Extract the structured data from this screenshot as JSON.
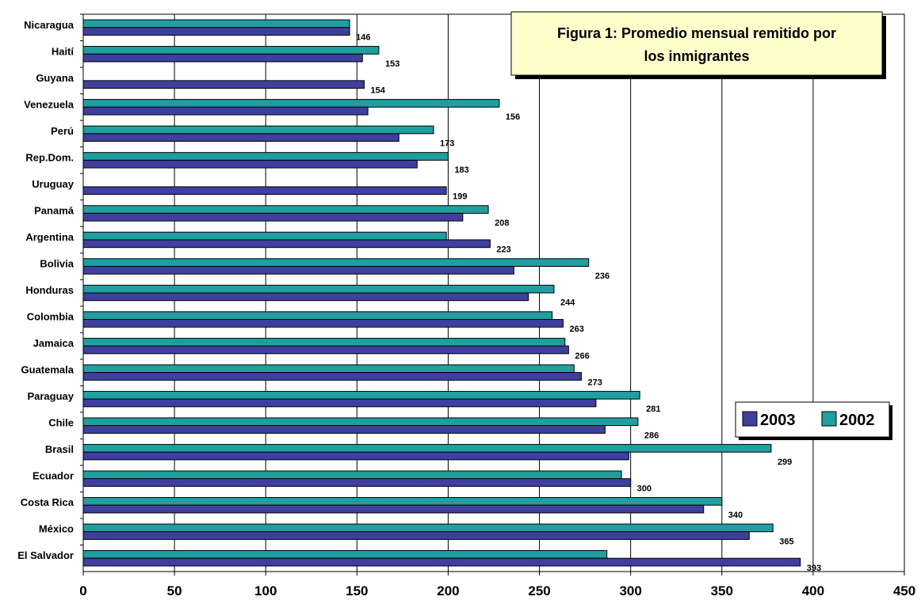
{
  "chart_data": {
    "type": "bar",
    "orientation": "horizontal",
    "title_lines": [
      "Figura 1: Promedio mensual remitido por",
      "los inmigrantes"
    ],
    "categories": [
      "Nicaragua",
      "Haití",
      "Guyana",
      "Venezuela",
      "Perú",
      "Rep.Dom.",
      "Uruguay",
      "Panamá",
      "Argentina",
      "Bolivia",
      "Honduras",
      "Colombia",
      "Jamaica",
      "Guatemala",
      "Paraguay",
      "Chile",
      "Brasil",
      "Ecuador",
      "Costa Rica",
      "México",
      "El Salvador"
    ],
    "series": [
      {
        "name": "2003",
        "color": "#3f3f9f",
        "values": [
          146,
          153,
          154,
          156,
          173,
          183,
          199,
          208,
          223,
          236,
          244,
          263,
          266,
          273,
          281,
          286,
          299,
          300,
          340,
          365,
          393
        ],
        "labels": [
          "146",
          "153",
          "154",
          "156",
          "173",
          "183",
          "199",
          "208",
          "223",
          "236",
          "244",
          "263",
          "266",
          "273",
          "281",
          "286",
          "299",
          "300",
          "340",
          "365",
          "393"
        ]
      },
      {
        "name": "2002",
        "color": "#1f9f9f",
        "values": [
          146,
          162,
          null,
          228,
          192,
          200,
          null,
          222,
          199,
          277,
          258,
          257,
          264,
          269,
          305,
          304,
          377,
          295,
          350,
          378,
          287
        ]
      }
    ],
    "xlim": [
      0,
      450
    ],
    "xticks": [
      "0",
      "50",
      "100",
      "150",
      "200",
      "250",
      "300",
      "350",
      "400",
      "450"
    ],
    "grid": "vertical",
    "legend": {
      "placement": "right",
      "entries": [
        "2003",
        "2002"
      ]
    }
  }
}
